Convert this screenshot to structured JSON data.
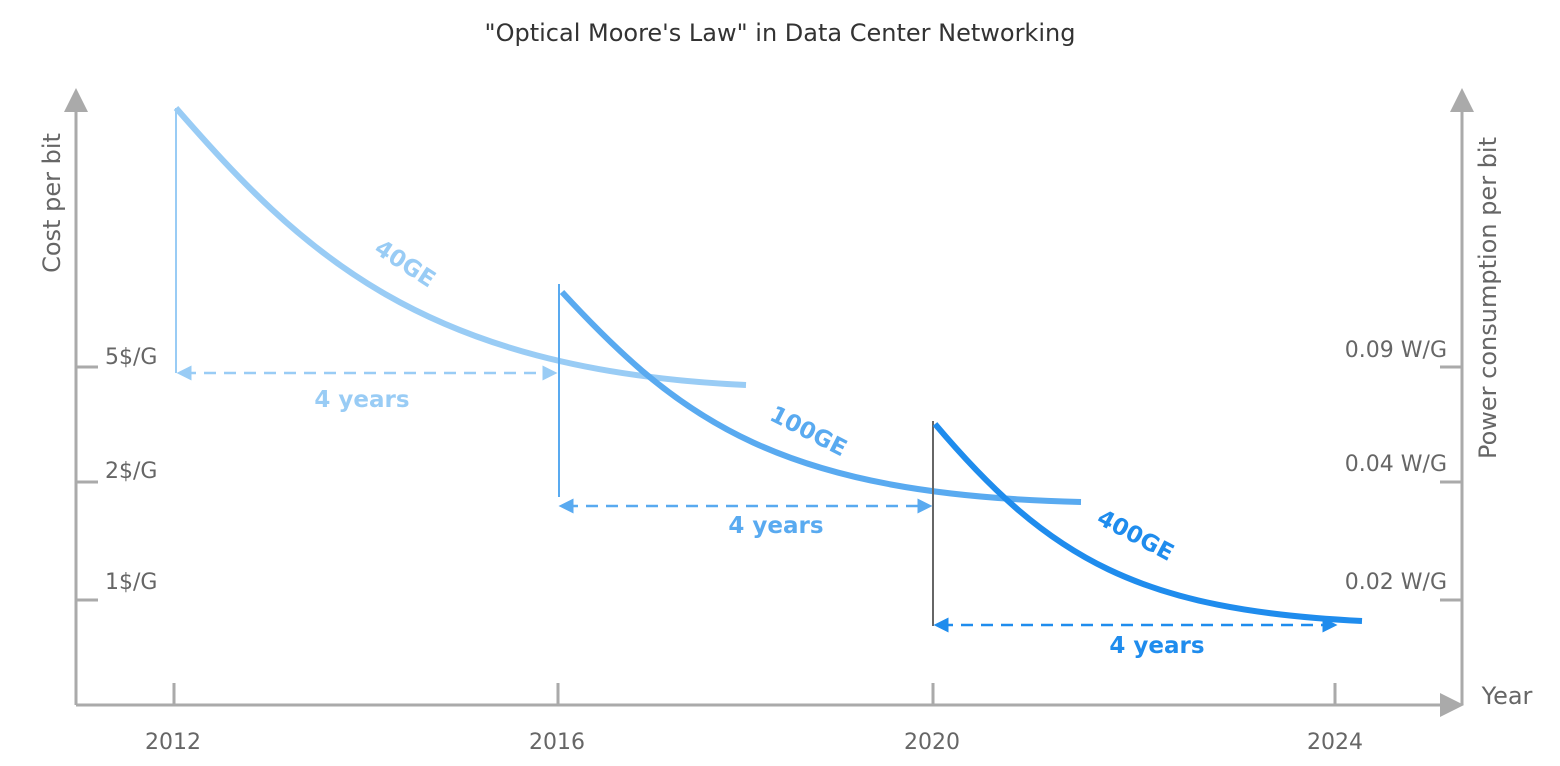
{
  "chart_data": {
    "type": "line",
    "title": "\"Optical Moore's Law\" in Data Center Networking",
    "xlabel": "Year",
    "ylabel_left": "Cost per bit",
    "ylabel_right": "Power consumption per bit",
    "x_ticks": [
      "2012",
      "2016",
      "2020",
      "2024"
    ],
    "y_ticks_left": [
      "5$/G",
      "2$/G",
      "1$/G"
    ],
    "y_ticks_right": [
      "0.09 W/G",
      "0.04 W/G",
      "0.02 W/G"
    ],
    "colors": {
      "40GE": "#99ccf5",
      "100GE": "#59aaf0",
      "400GE": "#1f8ced",
      "axis": "#aaaaaa"
    },
    "series": [
      {
        "name": "40GE",
        "start_year": 2012,
        "end_year": 2018
      },
      {
        "name": "100GE",
        "start_year": 2016,
        "end_year": 2021.5
      },
      {
        "name": "400GE",
        "start_year": 2020,
        "end_year": 2024.3
      }
    ],
    "intervals": [
      {
        "label": "4 years",
        "from": 2012,
        "to": 2016
      },
      {
        "label": "4 years",
        "from": 2016,
        "to": 2020
      },
      {
        "label": "4 years",
        "from": 2020,
        "to": 2024
      }
    ]
  }
}
